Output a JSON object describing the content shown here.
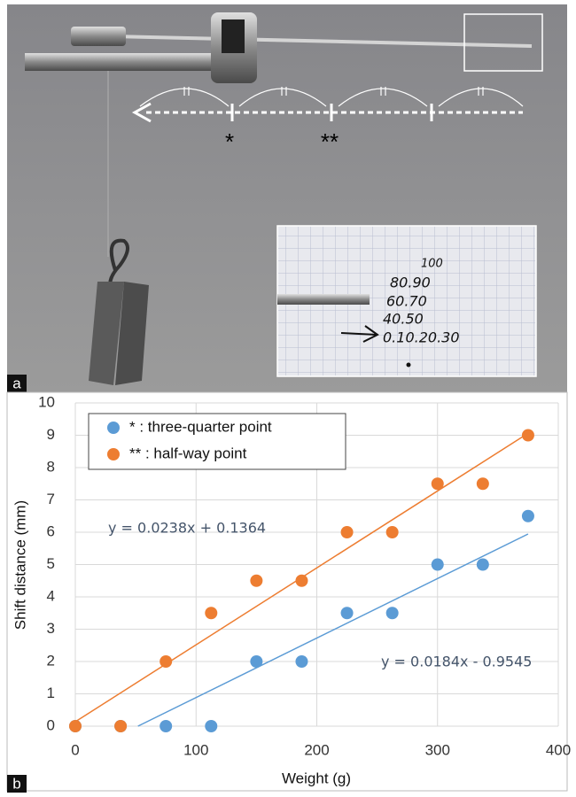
{
  "photo": {
    "label": "a",
    "marks": [
      "*",
      "**"
    ],
    "handwriting": [
      "100",
      "80.90",
      "60.70",
      "40.50",
      "0.10.20.30"
    ]
  },
  "chart_data": {
    "type": "scatter",
    "panel_label": "b",
    "x_label": "Weight (g)",
    "y_label": "Shift distance (mm)",
    "xlim": [
      0,
      400
    ],
    "xticks": [
      0,
      100,
      200,
      300,
      400
    ],
    "ylim": [
      0,
      10
    ],
    "yticks": [
      0,
      1,
      2,
      3,
      4,
      5,
      6,
      7,
      8,
      9,
      10
    ],
    "grid": true,
    "legend": "top-left",
    "series": [
      {
        "name": "* : three-quarter point",
        "color": "#5b9bd5",
        "x": [
          0,
          37.5,
          75,
          112.5,
          150,
          187.5,
          225,
          262.5,
          300,
          337.5,
          375
        ],
        "values": [
          0,
          0,
          0,
          0,
          2,
          2,
          3.5,
          3.5,
          5,
          5,
          6.5
        ],
        "trendline": {
          "label": "y = 0.0184x - 0.9545",
          "slope": 0.0184,
          "intercept": -0.9545
        }
      },
      {
        "name": "** : half-way point",
        "color": "#ed7d31",
        "x": [
          0,
          37.5,
          75,
          112.5,
          150,
          187.5,
          225,
          262.5,
          300,
          337.5,
          375
        ],
        "values": [
          0,
          0,
          2,
          3.5,
          4.5,
          4.5,
          6,
          6,
          7.5,
          7.5,
          9
        ],
        "trendline": {
          "label": "y = 0.0238x + 0.1364",
          "slope": 0.0238,
          "intercept": 0.1364
        }
      }
    ]
  }
}
